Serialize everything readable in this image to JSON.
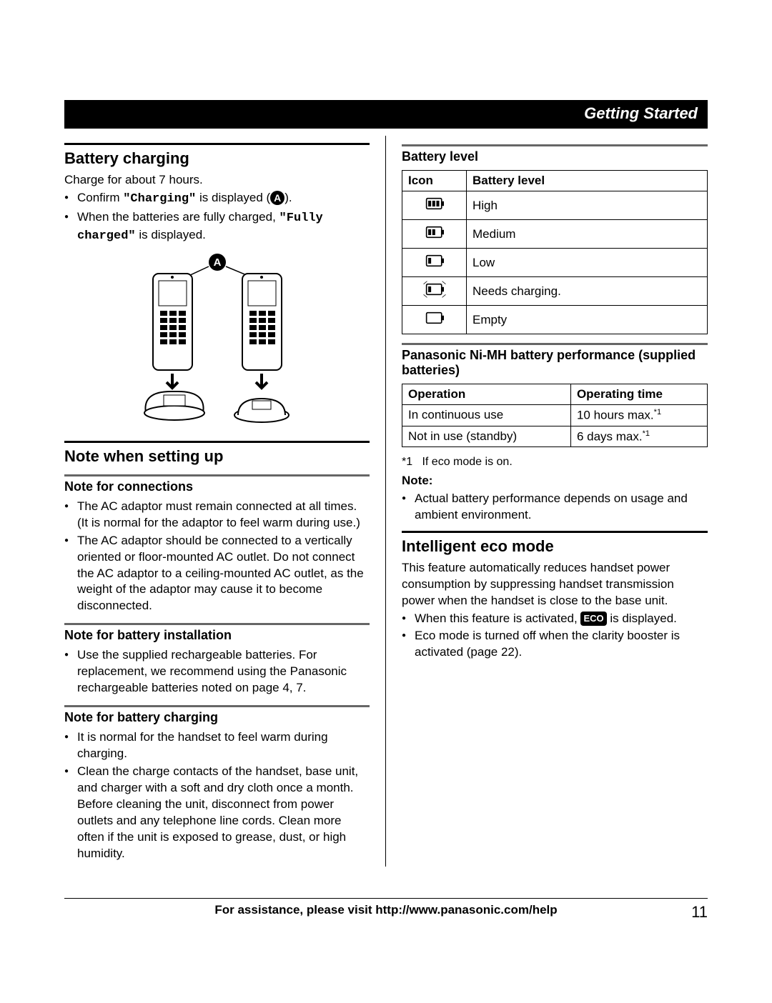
{
  "header": {
    "section_title": "Getting Started"
  },
  "left": {
    "battery_charging": {
      "heading": "Battery charging",
      "intro": "Charge for about 7 hours.",
      "bullet1_prefix": "Confirm ",
      "bullet1_quote": "\"Charging\"",
      "bullet1_suffix": " is displayed (",
      "bullet1_end": ").",
      "bullet2_prefix": "When the batteries are fully charged, ",
      "bullet2_quote": "\"Fully charged\"",
      "bullet2_suffix": " is displayed."
    },
    "note_setup": {
      "heading": "Note when setting up",
      "sub1": {
        "heading": "Note for connections",
        "items": [
          "The AC adaptor must remain connected at all times. (It is normal for the adaptor to feel warm during use.)",
          "The AC adaptor should be connected to a vertically oriented or floor-mounted AC outlet. Do not connect the AC adaptor to a ceiling-mounted AC outlet, as the weight of the adaptor may cause it to become disconnected."
        ]
      },
      "sub2": {
        "heading": "Note for battery installation",
        "items": [
          "Use the supplied rechargeable batteries. For replacement, we recommend using the Panasonic rechargeable batteries noted on page 4, 7."
        ]
      },
      "sub3": {
        "heading": "Note for battery charging",
        "items": [
          "It is normal for the handset to feel warm during charging.",
          "Clean the charge contacts of the handset, base unit, and charger with a soft and dry cloth once a month. Before cleaning the unit, disconnect from power outlets and any telephone line cords. Clean more often if the unit is exposed to grease, dust, or high humidity."
        ]
      }
    }
  },
  "right": {
    "battery_level": {
      "heading": "Battery level",
      "table": {
        "col1": "Icon",
        "col2": "Battery level",
        "rows": [
          {
            "level": "High",
            "bars": 3
          },
          {
            "level": "Medium",
            "bars": 2
          },
          {
            "level": "Low",
            "bars": 1
          },
          {
            "level": "Needs charging.",
            "bars": 1,
            "flashing": true
          },
          {
            "level": "Empty",
            "bars": 0
          }
        ]
      }
    },
    "performance": {
      "heading": "Panasonic Ni-MH battery performance (supplied batteries)",
      "table": {
        "col1": "Operation",
        "col2": "Operating time",
        "rows": [
          {
            "op": "In continuous use",
            "time": "10 hours max.",
            "note_ref": "*1"
          },
          {
            "op": "Not in use (standby)",
            "time": "6 days max.",
            "note_ref": "*1"
          }
        ]
      },
      "footnote_label": "*1",
      "footnote_text": "If eco mode is on.",
      "note_heading": "Note:",
      "note_items": [
        "Actual battery performance depends on usage and ambient environment."
      ]
    },
    "eco": {
      "heading": "Intelligent eco mode",
      "intro": "This feature automatically reduces handset power consumption by suppressing handset transmission power when the handset is close to the base unit.",
      "bullet1_prefix": "When this feature is activated, ",
      "bullet1_badge": "ECO",
      "bullet1_suffix": " is displayed.",
      "bullet2": "Eco mode is turned off when the clarity booster is activated (page 22)."
    }
  },
  "footer": {
    "text": "For assistance, please visit http://www.panasonic.com/help",
    "page_number": "11"
  },
  "style": {
    "colors": {
      "text": "#000000",
      "bg": "#ffffff",
      "header_bg": "#000000",
      "header_fg": "#ffffff",
      "rule_thin": "#666666"
    },
    "fonts": {
      "body_size_pt": 12,
      "h2_size_pt": 16,
      "h3_size_pt": 13
    }
  }
}
